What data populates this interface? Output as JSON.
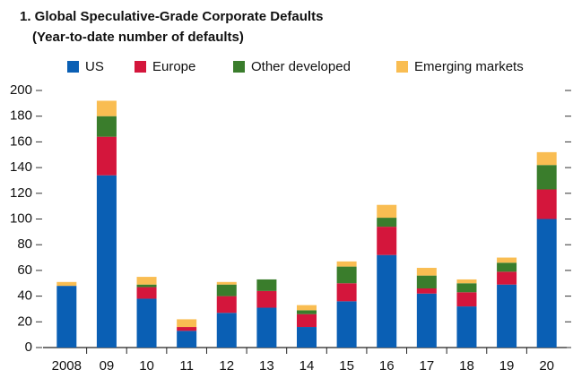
{
  "chart_data": {
    "type": "stacked_bar",
    "title": "1. Global Speculative-Grade Corporate Defaults",
    "subtitle": "(Year-to-date number of defaults)",
    "categories": [
      "2008",
      "09",
      "10",
      "11",
      "12",
      "13",
      "14",
      "15",
      "16",
      "17",
      "18",
      "19",
      "20"
    ],
    "series": [
      {
        "name": "US",
        "color": "#0a5fb4",
        "values": [
          48,
          134,
          38,
          13,
          27,
          31,
          16,
          36,
          72,
          42,
          32,
          49,
          100
        ]
      },
      {
        "name": "Europe",
        "color": "#d4163c",
        "values": [
          0,
          30,
          9,
          3,
          13,
          13,
          10,
          14,
          22,
          4,
          11,
          10,
          23
        ]
      },
      {
        "name": "Other developed",
        "color": "#3a7d2c",
        "values": [
          0,
          16,
          2,
          0,
          9,
          9,
          3,
          13,
          7,
          10,
          7,
          7,
          19
        ]
      },
      {
        "name": "Emerging markets",
        "color": "#f9bd52",
        "values": [
          3,
          12,
          6,
          6,
          2,
          0,
          4,
          4,
          10,
          6,
          3,
          4,
          10
        ]
      }
    ],
    "ylim": [
      0,
      200
    ],
    "yticks": [
      0,
      20,
      40,
      60,
      80,
      100,
      120,
      140,
      160,
      180,
      200
    ],
    "grid": false,
    "legend": "top"
  }
}
